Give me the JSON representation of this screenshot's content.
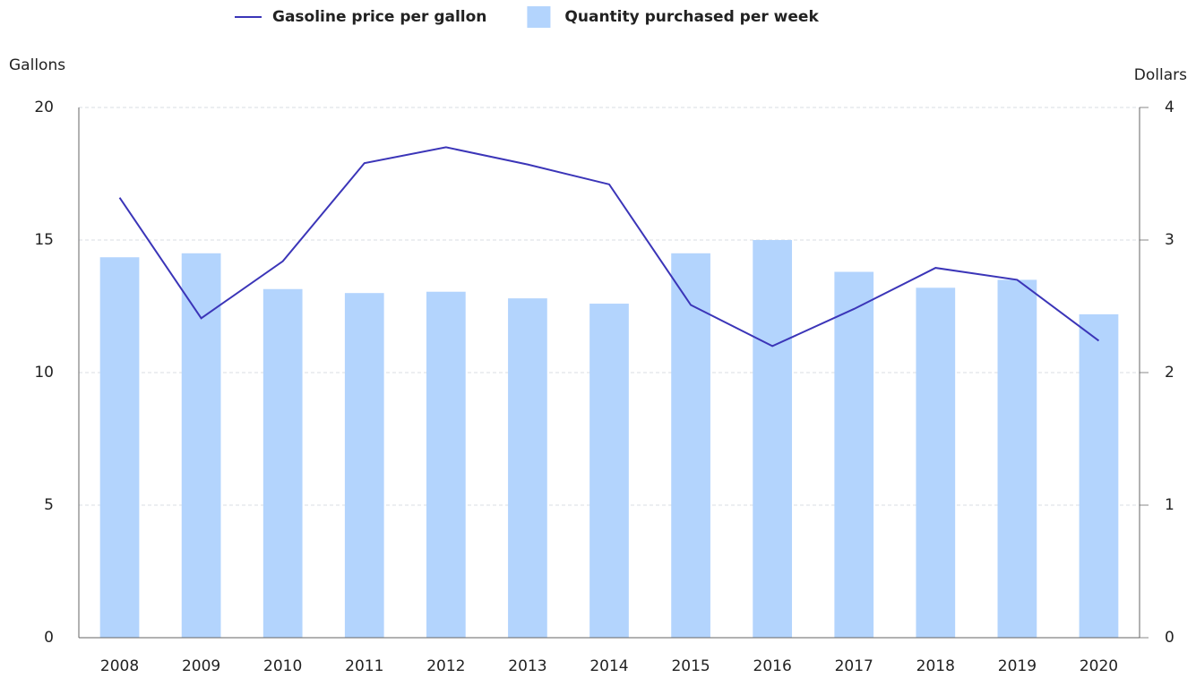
{
  "chart_data": {
    "type": "combo",
    "categories": [
      "2008",
      "2009",
      "2010",
      "2011",
      "2012",
      "2013",
      "2014",
      "2015",
      "2016",
      "2017",
      "2018",
      "2019",
      "2020"
    ],
    "series": [
      {
        "name": "Gasoline price per gallon",
        "type": "line",
        "axis": "y2",
        "color": "#3b35b8",
        "values": [
          3.32,
          2.41,
          2.84,
          3.58,
          3.7,
          3.57,
          3.42,
          2.51,
          2.2,
          2.48,
          2.79,
          2.7,
          2.24
        ]
      },
      {
        "name": "Quantity purchased per week",
        "type": "bar",
        "axis": "y",
        "color": "#b3d4fd",
        "values": [
          14.35,
          14.5,
          13.15,
          13.0,
          13.05,
          12.8,
          12.6,
          14.5,
          15.0,
          13.8,
          13.2,
          13.5,
          12.2
        ]
      }
    ],
    "ylabel": "Gallons",
    "y2label": "Dollars",
    "ylim": [
      0,
      20
    ],
    "yticks": [
      0,
      5,
      10,
      15,
      20
    ],
    "y2lim": [
      0,
      4
    ],
    "y2ticks": [
      0,
      1,
      2,
      3,
      4
    ],
    "grid": true,
    "legend": "top"
  }
}
